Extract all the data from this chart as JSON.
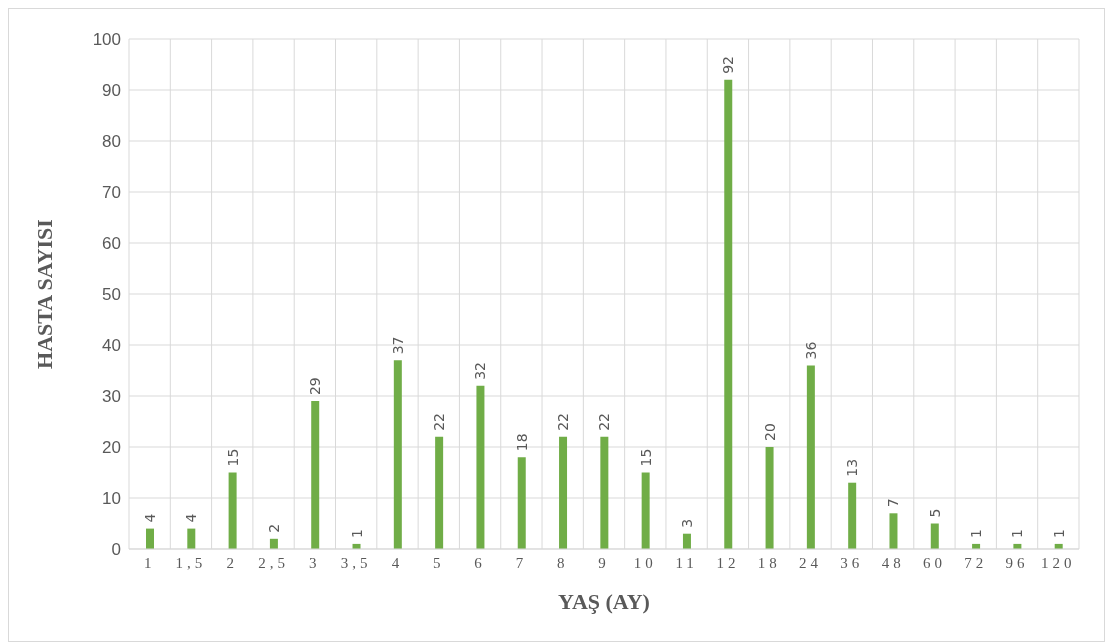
{
  "chart_data": {
    "type": "bar",
    "xlabel": "YAŞ (AY)",
    "ylabel": "HASTA SAYISI",
    "categories": [
      "1",
      "1,5",
      "2",
      "2,5",
      "3",
      "3,5",
      "4",
      "5",
      "6",
      "7",
      "8",
      "9",
      "10",
      "11",
      "12",
      "18",
      "24",
      "36",
      "48",
      "60",
      "72",
      "96",
      "120"
    ],
    "values": [
      4,
      4,
      15,
      2,
      29,
      1,
      37,
      22,
      32,
      18,
      22,
      22,
      15,
      3,
      92,
      20,
      36,
      13,
      7,
      5,
      1,
      1,
      1
    ],
    "color": "#70ad47",
    "ylim": [
      0,
      100
    ],
    "yticks": [
      0,
      10,
      20,
      30,
      40,
      50,
      60,
      70,
      80,
      90,
      100
    ],
    "grid": true,
    "data_labels": true
  }
}
